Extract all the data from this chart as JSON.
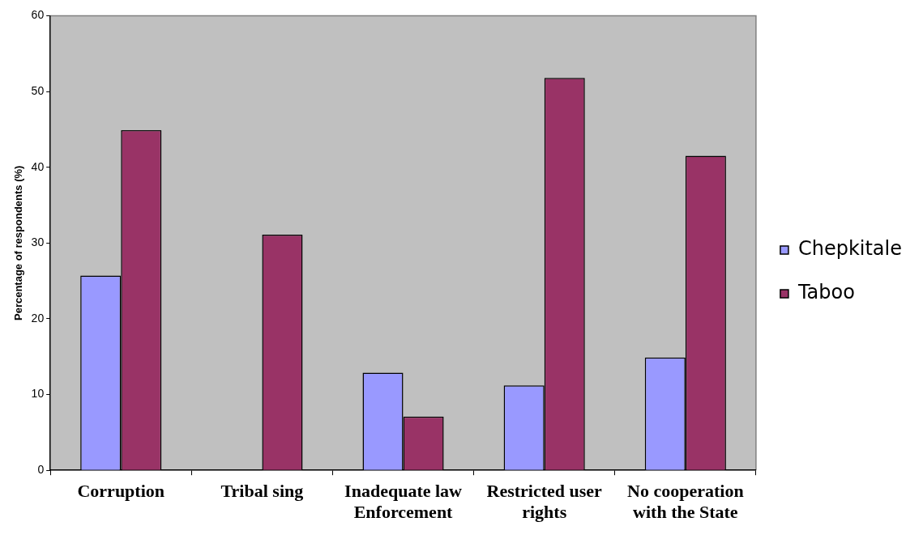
{
  "chart_data": {
    "type": "bar",
    "ylabel": "Percentage of respondents (%)",
    "categories": [
      "Corruption",
      "Tribal sing",
      "Inadequate law Enforcement",
      "Restricted user rights",
      "No cooperation with the State"
    ],
    "series": [
      {
        "name": "Chepkitale",
        "color": "#9999ff",
        "values": [
          25.7,
          null,
          12.9,
          11.2,
          14.9
        ]
      },
      {
        "name": "Taboo",
        "color": "#993366",
        "values": [
          44.9,
          31.1,
          7.1,
          51.8,
          41.5
        ]
      }
    ],
    "ylim": [
      0,
      60
    ],
    "yticks": [
      0,
      10,
      20,
      30,
      40,
      50,
      60
    ],
    "grid": false,
    "legend": "right"
  }
}
